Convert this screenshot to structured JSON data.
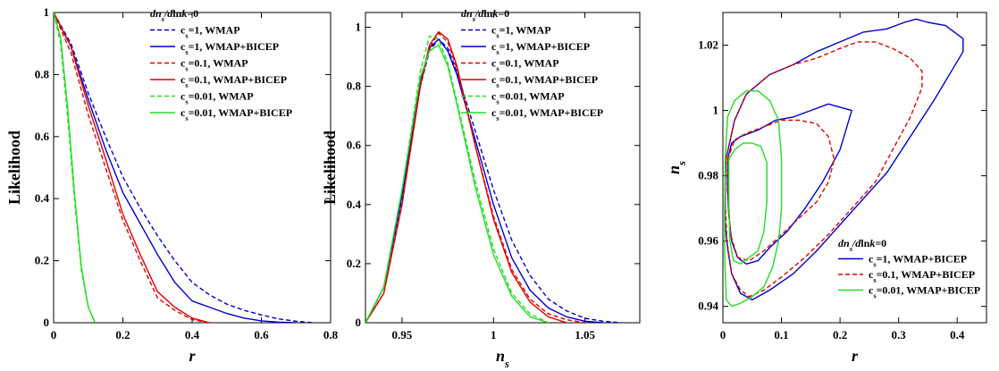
{
  "figure": {
    "colors": {
      "blue": "#0000cc",
      "red": "#e00000",
      "green": "#22dd22"
    },
    "legend_styles": [
      "dashed",
      "solid",
      "dashed",
      "solid",
      "dashed",
      "solid"
    ],
    "legend_colors": [
      "blue",
      "blue",
      "red",
      "red",
      "green",
      "green"
    ]
  },
  "chart_data": [
    {
      "type": "line",
      "ylabel": "Likelihood",
      "xlabel": "r",
      "xlim": [
        0,
        0.8
      ],
      "ylim": [
        0,
        1
      ],
      "xticks": [
        "0",
        "0.2",
        "0.4",
        "0.6",
        "0.8"
      ],
      "yticks": [
        "0",
        "0.2",
        "0.4",
        "0.6",
        "0.8",
        "1"
      ],
      "legend_title": "dn_s/dlnk=0",
      "legend_placement": "top-right",
      "series": [
        {
          "name": "c_s=1, WMAP",
          "color": "blue",
          "style": "dashed",
          "x": [
            0,
            0.05,
            0.1,
            0.15,
            0.2,
            0.25,
            0.3,
            0.35,
            0.4,
            0.45,
            0.5,
            0.55,
            0.6,
            0.65,
            0.7,
            0.75
          ],
          "y": [
            1,
            0.9,
            0.74,
            0.6,
            0.47,
            0.37,
            0.28,
            0.2,
            0.13,
            0.09,
            0.06,
            0.04,
            0.025,
            0.012,
            0.005,
            0
          ]
        },
        {
          "name": "c_s=1, WMAP+BICEP",
          "color": "blue",
          "style": "solid",
          "x": [
            0,
            0.05,
            0.1,
            0.15,
            0.2,
            0.25,
            0.3,
            0.35,
            0.4,
            0.45,
            0.5,
            0.55,
            0.6,
            0.65,
            0.7
          ],
          "y": [
            1,
            0.89,
            0.72,
            0.56,
            0.42,
            0.32,
            0.22,
            0.13,
            0.07,
            0.05,
            0.03,
            0.015,
            0.006,
            0.002,
            0
          ]
        },
        {
          "name": "c_s=0.1, WMAP",
          "color": "red",
          "style": "dashed",
          "x": [
            0,
            0.05,
            0.1,
            0.15,
            0.2,
            0.25,
            0.3,
            0.35,
            0.4,
            0.45
          ],
          "y": [
            1,
            0.87,
            0.67,
            0.5,
            0.33,
            0.2,
            0.08,
            0.04,
            0.01,
            0
          ]
        },
        {
          "name": "c_s=0.1, WMAP+BICEP",
          "color": "red",
          "style": "solid",
          "x": [
            0,
            0.05,
            0.1,
            0.15,
            0.2,
            0.25,
            0.3,
            0.35,
            0.4,
            0.45
          ],
          "y": [
            1,
            0.89,
            0.7,
            0.53,
            0.35,
            0.22,
            0.1,
            0.05,
            0.015,
            0
          ]
        },
        {
          "name": "c_s=0.01, WMAP",
          "color": "green",
          "style": "dashed",
          "x": [
            0,
            0.02,
            0.04,
            0.06,
            0.08,
            0.1,
            0.12
          ],
          "y": [
            1,
            0.9,
            0.67,
            0.4,
            0.17,
            0.05,
            0
          ]
        },
        {
          "name": "c_s=0.01, WMAP+BICEP",
          "color": "green",
          "style": "solid",
          "x": [
            0,
            0.02,
            0.04,
            0.06,
            0.08,
            0.1,
            0.12
          ],
          "y": [
            1,
            0.92,
            0.7,
            0.42,
            0.18,
            0.05,
            0
          ]
        }
      ]
    },
    {
      "type": "line",
      "ylabel": "Likelihood",
      "xlabel": "n_s",
      "xlim": [
        0.93,
        1.08
      ],
      "ylim": [
        0,
        1.05
      ],
      "xticks": [
        "0.95",
        "1",
        "1.05"
      ],
      "yticks": [
        "0",
        "0.2",
        "0.4",
        "0.6",
        "0.8",
        "1"
      ],
      "legend_title": "dn_s/dlnk=0",
      "legend_placement": "top-right",
      "series": [
        {
          "name": "c_s=1, WMAP",
          "color": "blue",
          "style": "dashed",
          "x": [
            0.93,
            0.94,
            0.95,
            0.96,
            0.965,
            0.97,
            0.975,
            0.98,
            0.99,
            1.0,
            1.01,
            1.02,
            1.03,
            1.04,
            1.05,
            1.06,
            1.07
          ],
          "y": [
            0,
            0.12,
            0.42,
            0.8,
            0.92,
            0.96,
            0.93,
            0.85,
            0.65,
            0.45,
            0.28,
            0.16,
            0.08,
            0.04,
            0.015,
            0.005,
            0
          ]
        },
        {
          "name": "c_s=1, WMAP+BICEP",
          "color": "blue",
          "style": "solid",
          "x": [
            0.93,
            0.94,
            0.95,
            0.96,
            0.965,
            0.97,
            0.975,
            0.98,
            0.99,
            1.0,
            1.01,
            1.02,
            1.03,
            1.04,
            1.05,
            1.06
          ],
          "y": [
            0,
            0.12,
            0.43,
            0.82,
            0.93,
            0.96,
            0.92,
            0.84,
            0.62,
            0.4,
            0.22,
            0.11,
            0.05,
            0.02,
            0.005,
            0
          ]
        },
        {
          "name": "c_s=0.1, WMAP",
          "color": "red",
          "style": "dashed",
          "x": [
            0.93,
            0.94,
            0.95,
            0.96,
            0.965,
            0.97,
            0.975,
            0.98,
            0.99,
            1.0,
            1.01,
            1.02,
            1.03,
            1.04,
            1.05
          ],
          "y": [
            0,
            0.1,
            0.4,
            0.8,
            0.93,
            0.98,
            0.95,
            0.86,
            0.6,
            0.36,
            0.18,
            0.08,
            0.03,
            0.01,
            0
          ]
        },
        {
          "name": "c_s=0.1, WMAP+BICEP",
          "color": "red",
          "style": "solid",
          "x": [
            0.93,
            0.94,
            0.95,
            0.96,
            0.965,
            0.97,
            0.975,
            0.98,
            0.99,
            1.0,
            1.01,
            1.02,
            1.03,
            1.04
          ],
          "y": [
            0,
            0.1,
            0.4,
            0.8,
            0.94,
            0.985,
            0.96,
            0.87,
            0.6,
            0.35,
            0.17,
            0.07,
            0.02,
            0
          ]
        },
        {
          "name": "c_s=0.01, WMAP",
          "color": "green",
          "style": "dashed",
          "x": [
            0.93,
            0.94,
            0.95,
            0.96,
            0.965,
            0.97,
            0.975,
            0.98,
            0.99,
            1.0,
            1.01,
            1.02,
            1.03
          ],
          "y": [
            0,
            0.12,
            0.45,
            0.85,
            0.97,
            0.96,
            0.88,
            0.75,
            0.48,
            0.25,
            0.1,
            0.03,
            0
          ]
        },
        {
          "name": "c_s=0.01, WMAP+BICEP",
          "color": "green",
          "style": "solid",
          "x": [
            0.93,
            0.94,
            0.95,
            0.96,
            0.965,
            0.97,
            0.975,
            0.98,
            0.99,
            1.0,
            1.01,
            1.02,
            1.03
          ],
          "y": [
            0,
            0.12,
            0.45,
            0.83,
            0.92,
            0.94,
            0.87,
            0.74,
            0.46,
            0.23,
            0.09,
            0.02,
            0
          ]
        }
      ]
    },
    {
      "type": "line",
      "ylabel": "n_s",
      "xlabel": "r",
      "xlim": [
        0,
        0.45
      ],
      "ylim": [
        0.935,
        1.03
      ],
      "xticks": [
        "0",
        "0.1",
        "0.2",
        "0.3",
        "0.4"
      ],
      "yticks": [
        "0.94",
        "0.96",
        "0.98",
        "1",
        "1.02"
      ],
      "legend_title": "dn_s/dlnk=0",
      "legend_placement": "bottom-right",
      "series": [
        {
          "name": "c_s=1, WMAP+BICEP",
          "color": "blue",
          "style": "solid",
          "contours": [
            {
              "x": [
                0.005,
                0.02,
                0.04,
                0.08,
                0.12,
                0.16,
                0.2,
                0.24,
                0.28,
                0.31,
                0.33,
                0.35,
                0.38,
                0.41,
                0.41,
                0.39,
                0.36,
                0.32,
                0.28,
                0.24,
                0.2,
                0.16,
                0.12,
                0.08,
                0.05,
                0.03,
                0.015,
                0.008,
                0.004,
                0.004,
                0.005
              ],
              "y": [
                0.985,
                0.997,
                1.005,
                1.011,
                1.014,
                1.018,
                1.021,
                1.024,
                1.025,
                1.027,
                1.028,
                1.027,
                1.026,
                1.022,
                1.018,
                1.012,
                1.003,
                0.992,
                0.981,
                0.973,
                0.965,
                0.957,
                0.95,
                0.945,
                0.942,
                0.944,
                0.95,
                0.958,
                0.965,
                0.977,
                0.985
              ]
            },
            {
              "x": [
                0.008,
                0.015,
                0.03,
                0.06,
                0.09,
                0.12,
                0.15,
                0.18,
                0.2,
                0.22,
                0.2,
                0.17,
                0.14,
                0.11,
                0.08,
                0.06,
                0.04,
                0.025,
                0.015,
                0.01,
                0.008,
                0.008
              ],
              "y": [
                0.985,
                0.99,
                0.992,
                0.994,
                0.997,
                0.998,
                1.0,
                1.002,
                1.001,
                1.0,
                0.988,
                0.978,
                0.97,
                0.963,
                0.958,
                0.954,
                0.953,
                0.955,
                0.96,
                0.968,
                0.976,
                0.985
              ]
            }
          ]
        },
        {
          "name": "c_s=0.1, WMAP+BICEP",
          "color": "red",
          "style": "dashed",
          "contours": [
            {
              "x": [
                0.005,
                0.02,
                0.04,
                0.08,
                0.12,
                0.16,
                0.2,
                0.23,
                0.26,
                0.29,
                0.32,
                0.34,
                0.34,
                0.32,
                0.29,
                0.26,
                0.22,
                0.18,
                0.14,
                0.1,
                0.07,
                0.045,
                0.03,
                0.015,
                0.007,
                0.004,
                0.005
              ],
              "y": [
                0.985,
                0.997,
                1.005,
                1.011,
                1.014,
                1.016,
                1.019,
                1.021,
                1.021,
                1.019,
                1.016,
                1.012,
                1.007,
                0.998,
                0.988,
                0.978,
                0.97,
                0.962,
                0.955,
                0.949,
                0.945,
                0.943,
                0.945,
                0.95,
                0.96,
                0.972,
                0.985
              ]
            },
            {
              "x": [
                0.008,
                0.02,
                0.04,
                0.07,
                0.1,
                0.13,
                0.16,
                0.18,
                0.19,
                0.18,
                0.16,
                0.13,
                0.1,
                0.07,
                0.045,
                0.025,
                0.013,
                0.009,
                0.008
              ],
              "y": [
                0.985,
                0.991,
                0.993,
                0.995,
                0.997,
                0.997,
                0.996,
                0.992,
                0.985,
                0.978,
                0.972,
                0.967,
                0.962,
                0.957,
                0.954,
                0.955,
                0.962,
                0.974,
                0.985
              ]
            }
          ]
        },
        {
          "name": "c_s=0.01, WMAP+BICEP",
          "color": "green",
          "style": "solid",
          "contours": [
            {
              "x": [
                0.004,
                0.008,
                0.02,
                0.04,
                0.06,
                0.08,
                0.095,
                0.1,
                0.1,
                0.095,
                0.085,
                0.07,
                0.05,
                0.03,
                0.015,
                0.006,
                0.003,
                0.003,
                0.004
              ],
              "y": [
                0.985,
                0.998,
                1.003,
                1.006,
                1.006,
                1.003,
                0.997,
                0.985,
                0.97,
                0.96,
                0.952,
                0.946,
                0.943,
                0.941,
                0.94,
                0.942,
                0.955,
                0.97,
                0.985
              ]
            },
            {
              "x": [
                0.01,
                0.02,
                0.035,
                0.05,
                0.065,
                0.075,
                0.075,
                0.07,
                0.06,
                0.045,
                0.03,
                0.018,
                0.012,
                0.01,
                0.01
              ],
              "y": [
                0.985,
                0.988,
                0.99,
                0.99,
                0.989,
                0.984,
                0.972,
                0.963,
                0.957,
                0.955,
                0.953,
                0.954,
                0.96,
                0.972,
                0.985
              ]
            }
          ]
        }
      ]
    }
  ],
  "panels": [
    {
      "ylabel": "Likelihood",
      "xlabel": "r",
      "ylabel_italic": false,
      "xlabel_italic": true,
      "xticks": [
        "0",
        "0.2",
        "0.4",
        "0.6",
        "0.8"
      ],
      "yticks": [
        "0",
        "0.2",
        "0.4",
        "0.6",
        "0.8",
        "1"
      ],
      "legend": {
        "title": [
          "dn",
          "s",
          "/d",
          "ln",
          "k",
          "=0"
        ],
        "entries": [
          [
            "c",
            "s",
            "=1, WMAP"
          ],
          [
            "c",
            "s",
            "=1, WMAP+BICEP"
          ],
          [
            "c",
            "s",
            "=0.1, WMAP"
          ],
          [
            "c",
            "s",
            "=0.1, WMAP+BICEP"
          ],
          [
            "c",
            "s",
            "=0.01, WMAP"
          ],
          [
            "c",
            "s",
            "=0.01, WMAP+BICEP"
          ]
        ]
      }
    },
    {
      "ylabel": "Likelihood",
      "xlabel": [
        "n",
        "s"
      ],
      "ylabel_italic": false,
      "xlabel_italic": true,
      "xticks": [
        "0.95",
        "1",
        "1.05"
      ],
      "yticks": [
        "0",
        "0.2",
        "0.4",
        "0.6",
        "0.8",
        "1"
      ],
      "legend": {
        "title": [
          "dn",
          "s",
          "/d",
          "ln",
          "k",
          "=0"
        ],
        "entries": [
          [
            "c",
            "s",
            "=1, WMAP"
          ],
          [
            "c",
            "s",
            "=1, WMAP+BICEP"
          ],
          [
            "c",
            "s",
            "=0.1, WMAP"
          ],
          [
            "c",
            "s",
            "=0.1, WMAP+BICEP"
          ],
          [
            "c",
            "s",
            "=0.01, WMAP"
          ],
          [
            "c",
            "s",
            "=0.01, WMAP+BICEP"
          ]
        ]
      }
    },
    {
      "ylabel": [
        "n",
        "s"
      ],
      "xlabel": "r",
      "ylabel_italic": true,
      "xlabel_italic": true,
      "xticks": [
        "0",
        "0.1",
        "0.2",
        "0.3",
        "0.4"
      ],
      "yticks": [
        "0.94",
        "0.96",
        "0.98",
        "1",
        "1.02"
      ],
      "legend": {
        "title": [
          "dn",
          "s",
          "/d",
          "ln",
          "k",
          "=0"
        ],
        "entries": [
          [
            "c",
            "s",
            "=1, WMAP+BICEP"
          ],
          [
            "c",
            "s",
            "=0.1, WMAP+BICEP"
          ],
          [
            "c",
            "s",
            "=0.01, WMAP+BICEP"
          ]
        ]
      }
    }
  ]
}
